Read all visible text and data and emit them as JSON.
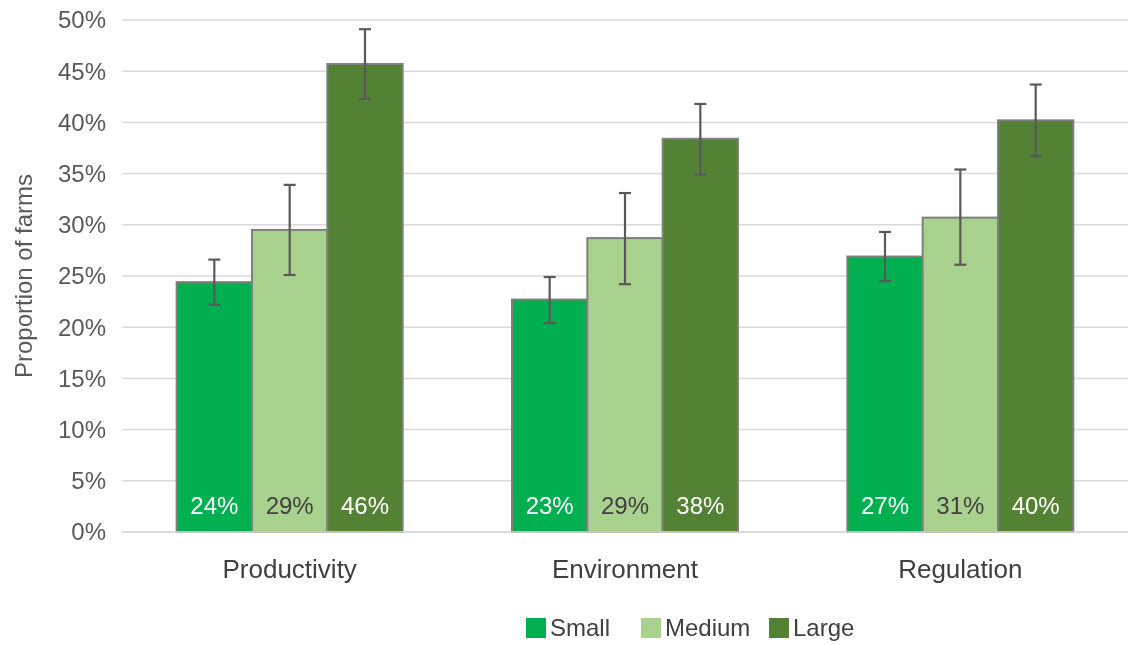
{
  "chart_data": {
    "type": "bar",
    "ylabel": "Proportion of farms",
    "categories": [
      "Productivity",
      "Environment",
      "Regulation"
    ],
    "series": [
      {
        "name": "Small",
        "color": "#00b050",
        "values": [
          24.4,
          22.7,
          26.9
        ],
        "errors": [
          [
            22.2,
            26.6
          ],
          [
            20.4,
            24.9
          ],
          [
            24.5,
            29.3
          ]
        ],
        "value_labels": [
          "24%",
          "23%",
          "27%"
        ]
      },
      {
        "name": "Medium",
        "color": "#a9d18e",
        "values": [
          29.5,
          28.7,
          30.7
        ],
        "errors": [
          [
            25.1,
            33.9
          ],
          [
            24.2,
            33.1
          ],
          [
            26.1,
            35.4
          ]
        ],
        "value_labels": [
          "29%",
          "29%",
          "31%"
        ]
      },
      {
        "name": "Large",
        "color": "#548235",
        "values": [
          45.7,
          38.4,
          40.2
        ],
        "errors": [
          [
            42.3,
            49.1
          ],
          [
            34.9,
            41.8
          ],
          [
            36.7,
            43.7
          ]
        ],
        "value_labels": [
          "46%",
          "38%",
          "40%"
        ]
      }
    ],
    "ylim": [
      0,
      50
    ],
    "yticks": [
      {
        "value": 0,
        "label": "0%"
      },
      {
        "value": 5,
        "label": "5%"
      },
      {
        "value": 10,
        "label": "10%"
      },
      {
        "value": 15,
        "label": "15%"
      },
      {
        "value": 20,
        "label": "20%"
      },
      {
        "value": 25,
        "label": "25%"
      },
      {
        "value": 30,
        "label": "30%"
      },
      {
        "value": 35,
        "label": "35%"
      },
      {
        "value": 40,
        "label": "40%"
      },
      {
        "value": 45,
        "label": "45%"
      },
      {
        "value": 50,
        "label": "50%"
      }
    ],
    "grid": "y",
    "legend": "bottom"
  }
}
